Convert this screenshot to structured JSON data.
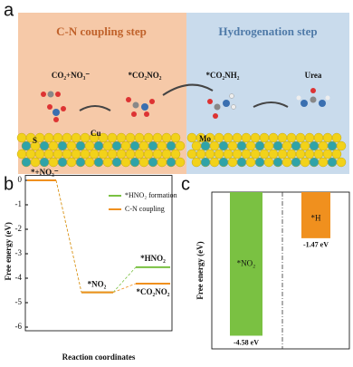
{
  "panel_a": {
    "label": "a",
    "left_title": "C-N coupling step",
    "right_title": "Hydrogenation step",
    "species": [
      "CO₂+NO₃⁻",
      "*CO₂NO₂",
      "*CO₂NH₂",
      "Urea"
    ],
    "atoms": [
      "S",
      "Cu",
      "Mo"
    ]
  },
  "chart_data": [
    {
      "type": "levels",
      "panel": "b",
      "ylabel": "Free energy (eV)",
      "xlabel": "Reaction coordinates",
      "ylim": [
        -6,
        0.2
      ],
      "yticks": [
        0,
        -1,
        -2,
        -3,
        -4,
        -5,
        -6
      ],
      "annotations": [
        "*+NO₃⁻",
        "*NO₂",
        "*HNO₂",
        "*CO₂NO₂"
      ],
      "legend": "upper right",
      "series": [
        {
          "name": "*HNO₂ formation",
          "color": "#7ac142",
          "values": [
            0,
            -4.58,
            -3.55
          ]
        },
        {
          "name": "C-N coupling",
          "color": "#f0901e",
          "values": [
            0,
            -4.58,
            -4.22
          ]
        }
      ]
    },
    {
      "type": "bar",
      "panel": "c",
      "ylabel": "Free energy (eV)",
      "ylim": [
        -5,
        0
      ],
      "categories": [
        "*NO₂",
        "*H"
      ],
      "colors": [
        "#7ac142",
        "#f0901e"
      ],
      "values": [
        -4.58,
        -1.47
      ],
      "value_labels": [
        "-4.58 eV",
        "-1.47 eV"
      ]
    }
  ]
}
